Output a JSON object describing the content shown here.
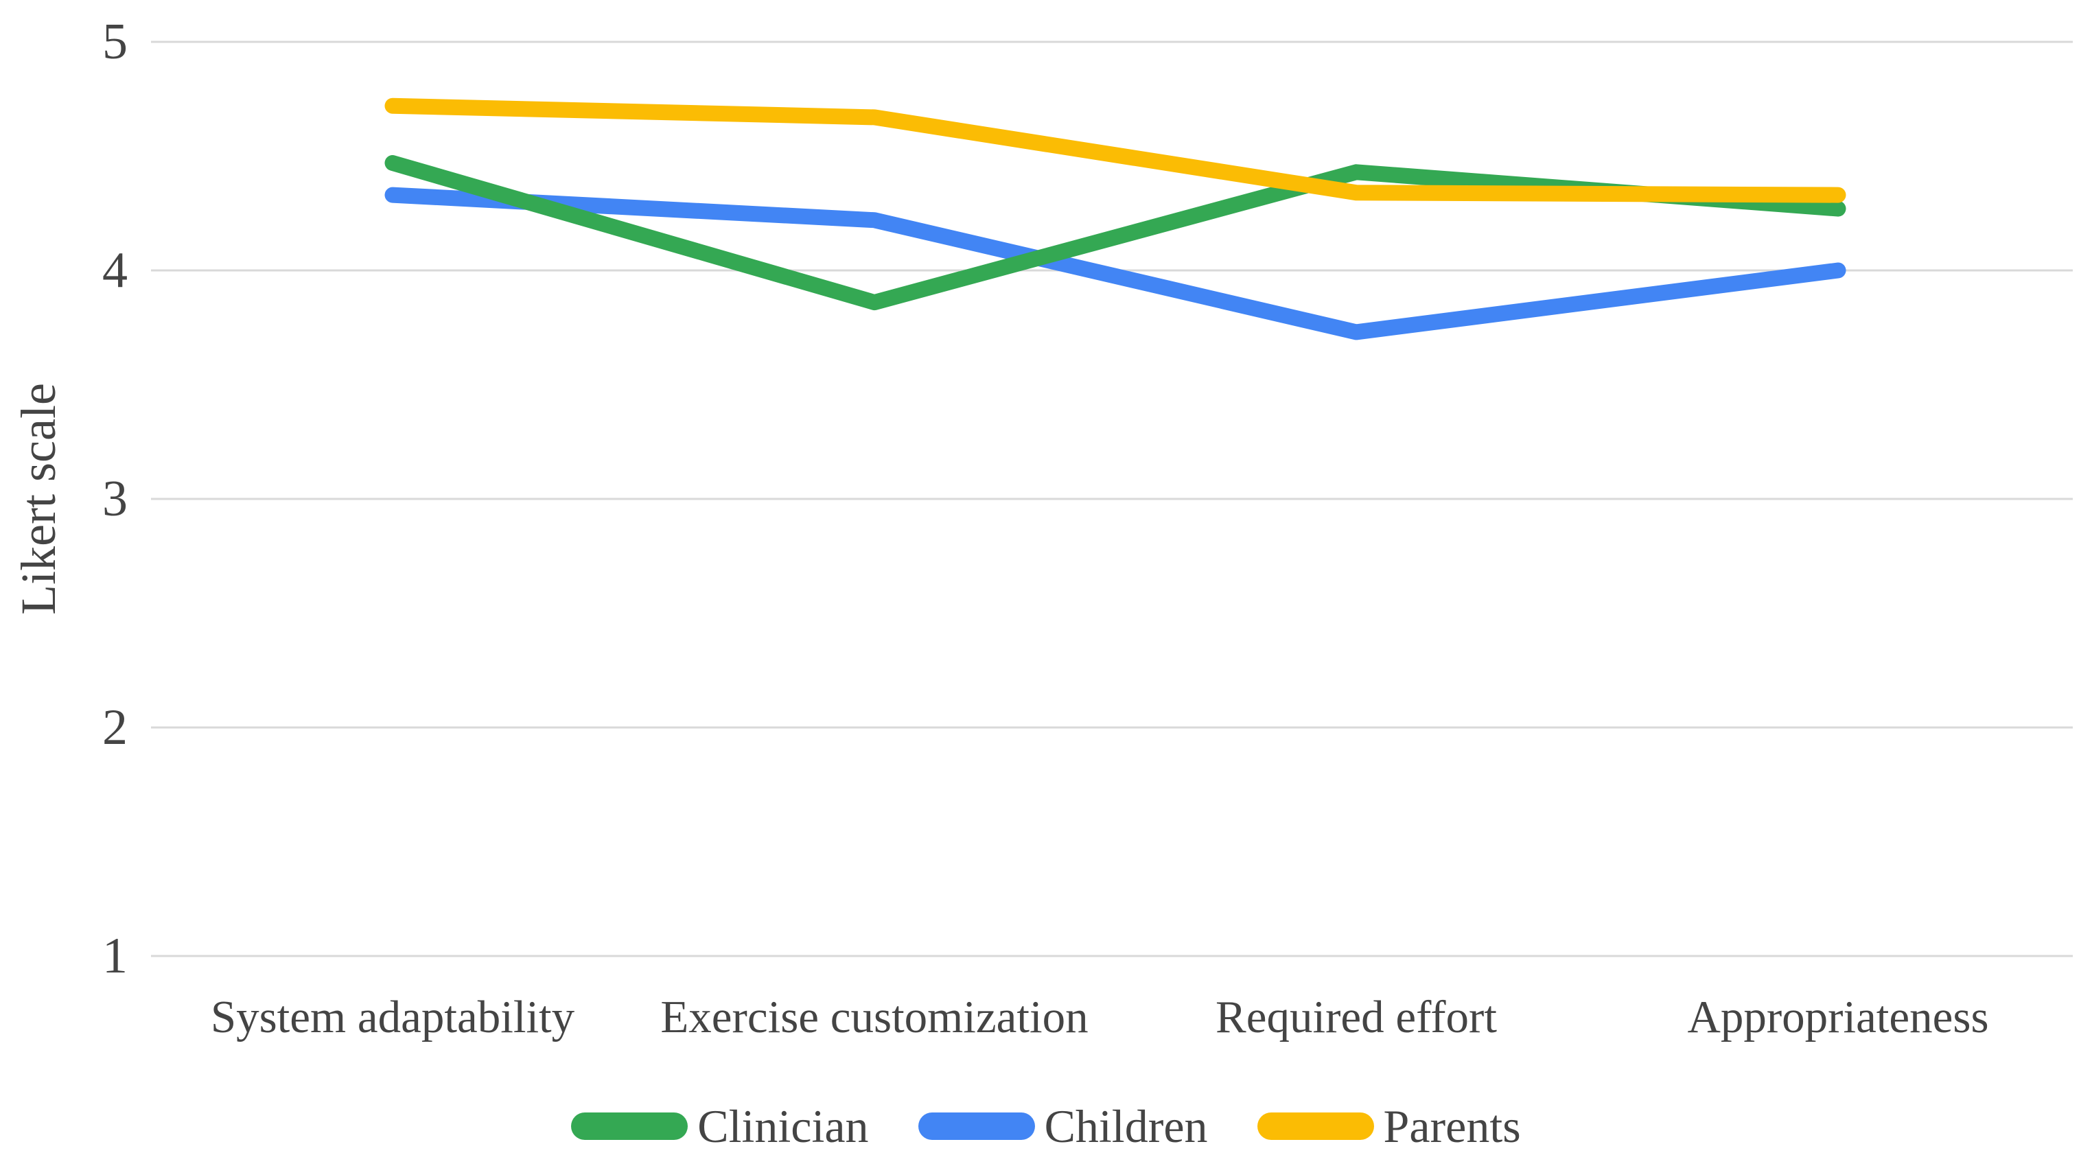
{
  "chart_data": {
    "type": "line",
    "title": "",
    "xlabel": "",
    "ylabel": "Likert scale",
    "categories": [
      "System adaptability",
      "Exercise customization",
      "Required effort",
      "Appropriateness"
    ],
    "series": [
      {
        "name": "Clinician",
        "color": "#34A853",
        "values": [
          4.47,
          3.86,
          4.43,
          4.27
        ]
      },
      {
        "name": "Children",
        "color": "#4285F4",
        "values": [
          4.33,
          4.22,
          3.73,
          4.0
        ]
      },
      {
        "name": "Parents",
        "color": "#FBBC04",
        "values": [
          4.72,
          4.67,
          4.34,
          4.33
        ]
      }
    ],
    "y_axis": {
      "min": 1,
      "max": 5,
      "ticks": [
        5,
        4,
        3,
        2,
        1
      ]
    },
    "ylim": [
      1,
      5
    ],
    "grid": true,
    "legend_position": "bottom",
    "legend_order": [
      "Clinician",
      "Children",
      "Parents"
    ]
  },
  "style": {
    "text_color": "#444444",
    "grid_color": "#D9D9D9",
    "background": "#FFFFFF"
  }
}
